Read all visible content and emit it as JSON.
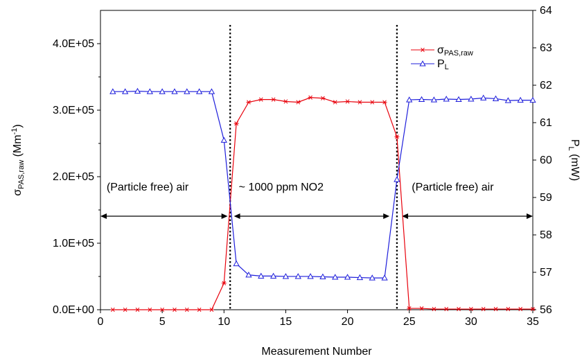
{
  "chart_data": {
    "type": "line",
    "x_axis": {
      "label": "Measurement Number",
      "min": 0,
      "max": 35,
      "ticks": [
        "0",
        "5",
        "10",
        "15",
        "20",
        "25",
        "30",
        "35"
      ]
    },
    "y_left": {
      "label_main": "σ",
      "label_sub": "PAS,raw",
      "label_rest": " (Mm",
      "label_sup": "-1",
      "label_close": ")",
      "min": 0,
      "max": 450000,
      "ticks": [
        {
          "value": 0,
          "label": "0.0E+00"
        },
        {
          "value": 100000,
          "label": "1.0E+05"
        },
        {
          "value": 200000,
          "label": "2.0E+05"
        },
        {
          "value": 300000,
          "label": "3.0E+05"
        },
        {
          "value": 400000,
          "label": "4.0E+05"
        }
      ]
    },
    "y_right": {
      "label_main": "P",
      "label_sub": "L",
      "label_rest": " (mW)",
      "min": 56,
      "max": 64,
      "ticks": [
        "56",
        "57",
        "58",
        "59",
        "60",
        "61",
        "62",
        "63",
        "64"
      ]
    },
    "series": [
      {
        "name_main": "σ",
        "name_sub": "PAS,raw",
        "axis": "left",
        "color": "#e8000b",
        "marker": "asterisk",
        "x": [
          1,
          2,
          3,
          4,
          5,
          6,
          7,
          8,
          9,
          10,
          11,
          12,
          13,
          14,
          15,
          16,
          17,
          18,
          19,
          20,
          21,
          22,
          23,
          24,
          25,
          26,
          27,
          28,
          29,
          30,
          31,
          32,
          33,
          34,
          35
        ],
        "y": [
          0,
          0,
          0,
          0,
          0,
          0,
          0,
          0,
          0,
          40000,
          280000,
          312000,
          316000,
          316000,
          313000,
          312000,
          319000,
          318000,
          312000,
          313000,
          312000,
          312000,
          312000,
          260000,
          2000,
          2000,
          1000,
          1000,
          1000,
          1000,
          1000,
          1000,
          1000,
          1000,
          1000
        ]
      },
      {
        "name_main": "P",
        "name_sub": "L",
        "axis": "right",
        "color": "#1d1ddb",
        "marker": "triangle",
        "x": [
          1,
          2,
          3,
          4,
          5,
          6,
          7,
          8,
          9,
          10,
          11,
          12,
          13,
          14,
          15,
          16,
          17,
          18,
          19,
          20,
          21,
          22,
          23,
          24,
          25,
          26,
          27,
          28,
          29,
          30,
          31,
          32,
          33,
          34,
          35
        ],
        "y": [
          61.83,
          61.83,
          61.84,
          61.83,
          61.83,
          61.83,
          61.83,
          61.83,
          61.83,
          60.53,
          57.23,
          56.93,
          56.9,
          56.9,
          56.89,
          56.89,
          56.89,
          56.88,
          56.87,
          56.87,
          56.86,
          56.85,
          56.85,
          59.48,
          61.61,
          61.62,
          61.61,
          61.63,
          61.62,
          61.63,
          61.66,
          61.64,
          61.59,
          61.6,
          61.6
        ]
      }
    ],
    "dividers_x": [
      10.5,
      24
    ],
    "annotations": [
      {
        "text": "(Particle free) air",
        "x": 0.5,
        "y_right": 59.28,
        "anchor": "start"
      },
      {
        "text": "~ 1000 ppm NO2",
        "x": 11.2,
        "y_right": 59.28,
        "anchor": "start"
      },
      {
        "text": "(Particle free) air",
        "x": 25.2,
        "y_right": 59.28,
        "anchor": "start"
      }
    ],
    "arrows": [
      {
        "x1": 0,
        "x2": 10.3,
        "y_right": 58.5
      },
      {
        "x1": 10.8,
        "x2": 23.4,
        "y_right": 58.5
      },
      {
        "x1": 24.4,
        "x2": 35,
        "y_right": 58.5
      }
    ],
    "legend": {
      "position": "top-right"
    }
  }
}
